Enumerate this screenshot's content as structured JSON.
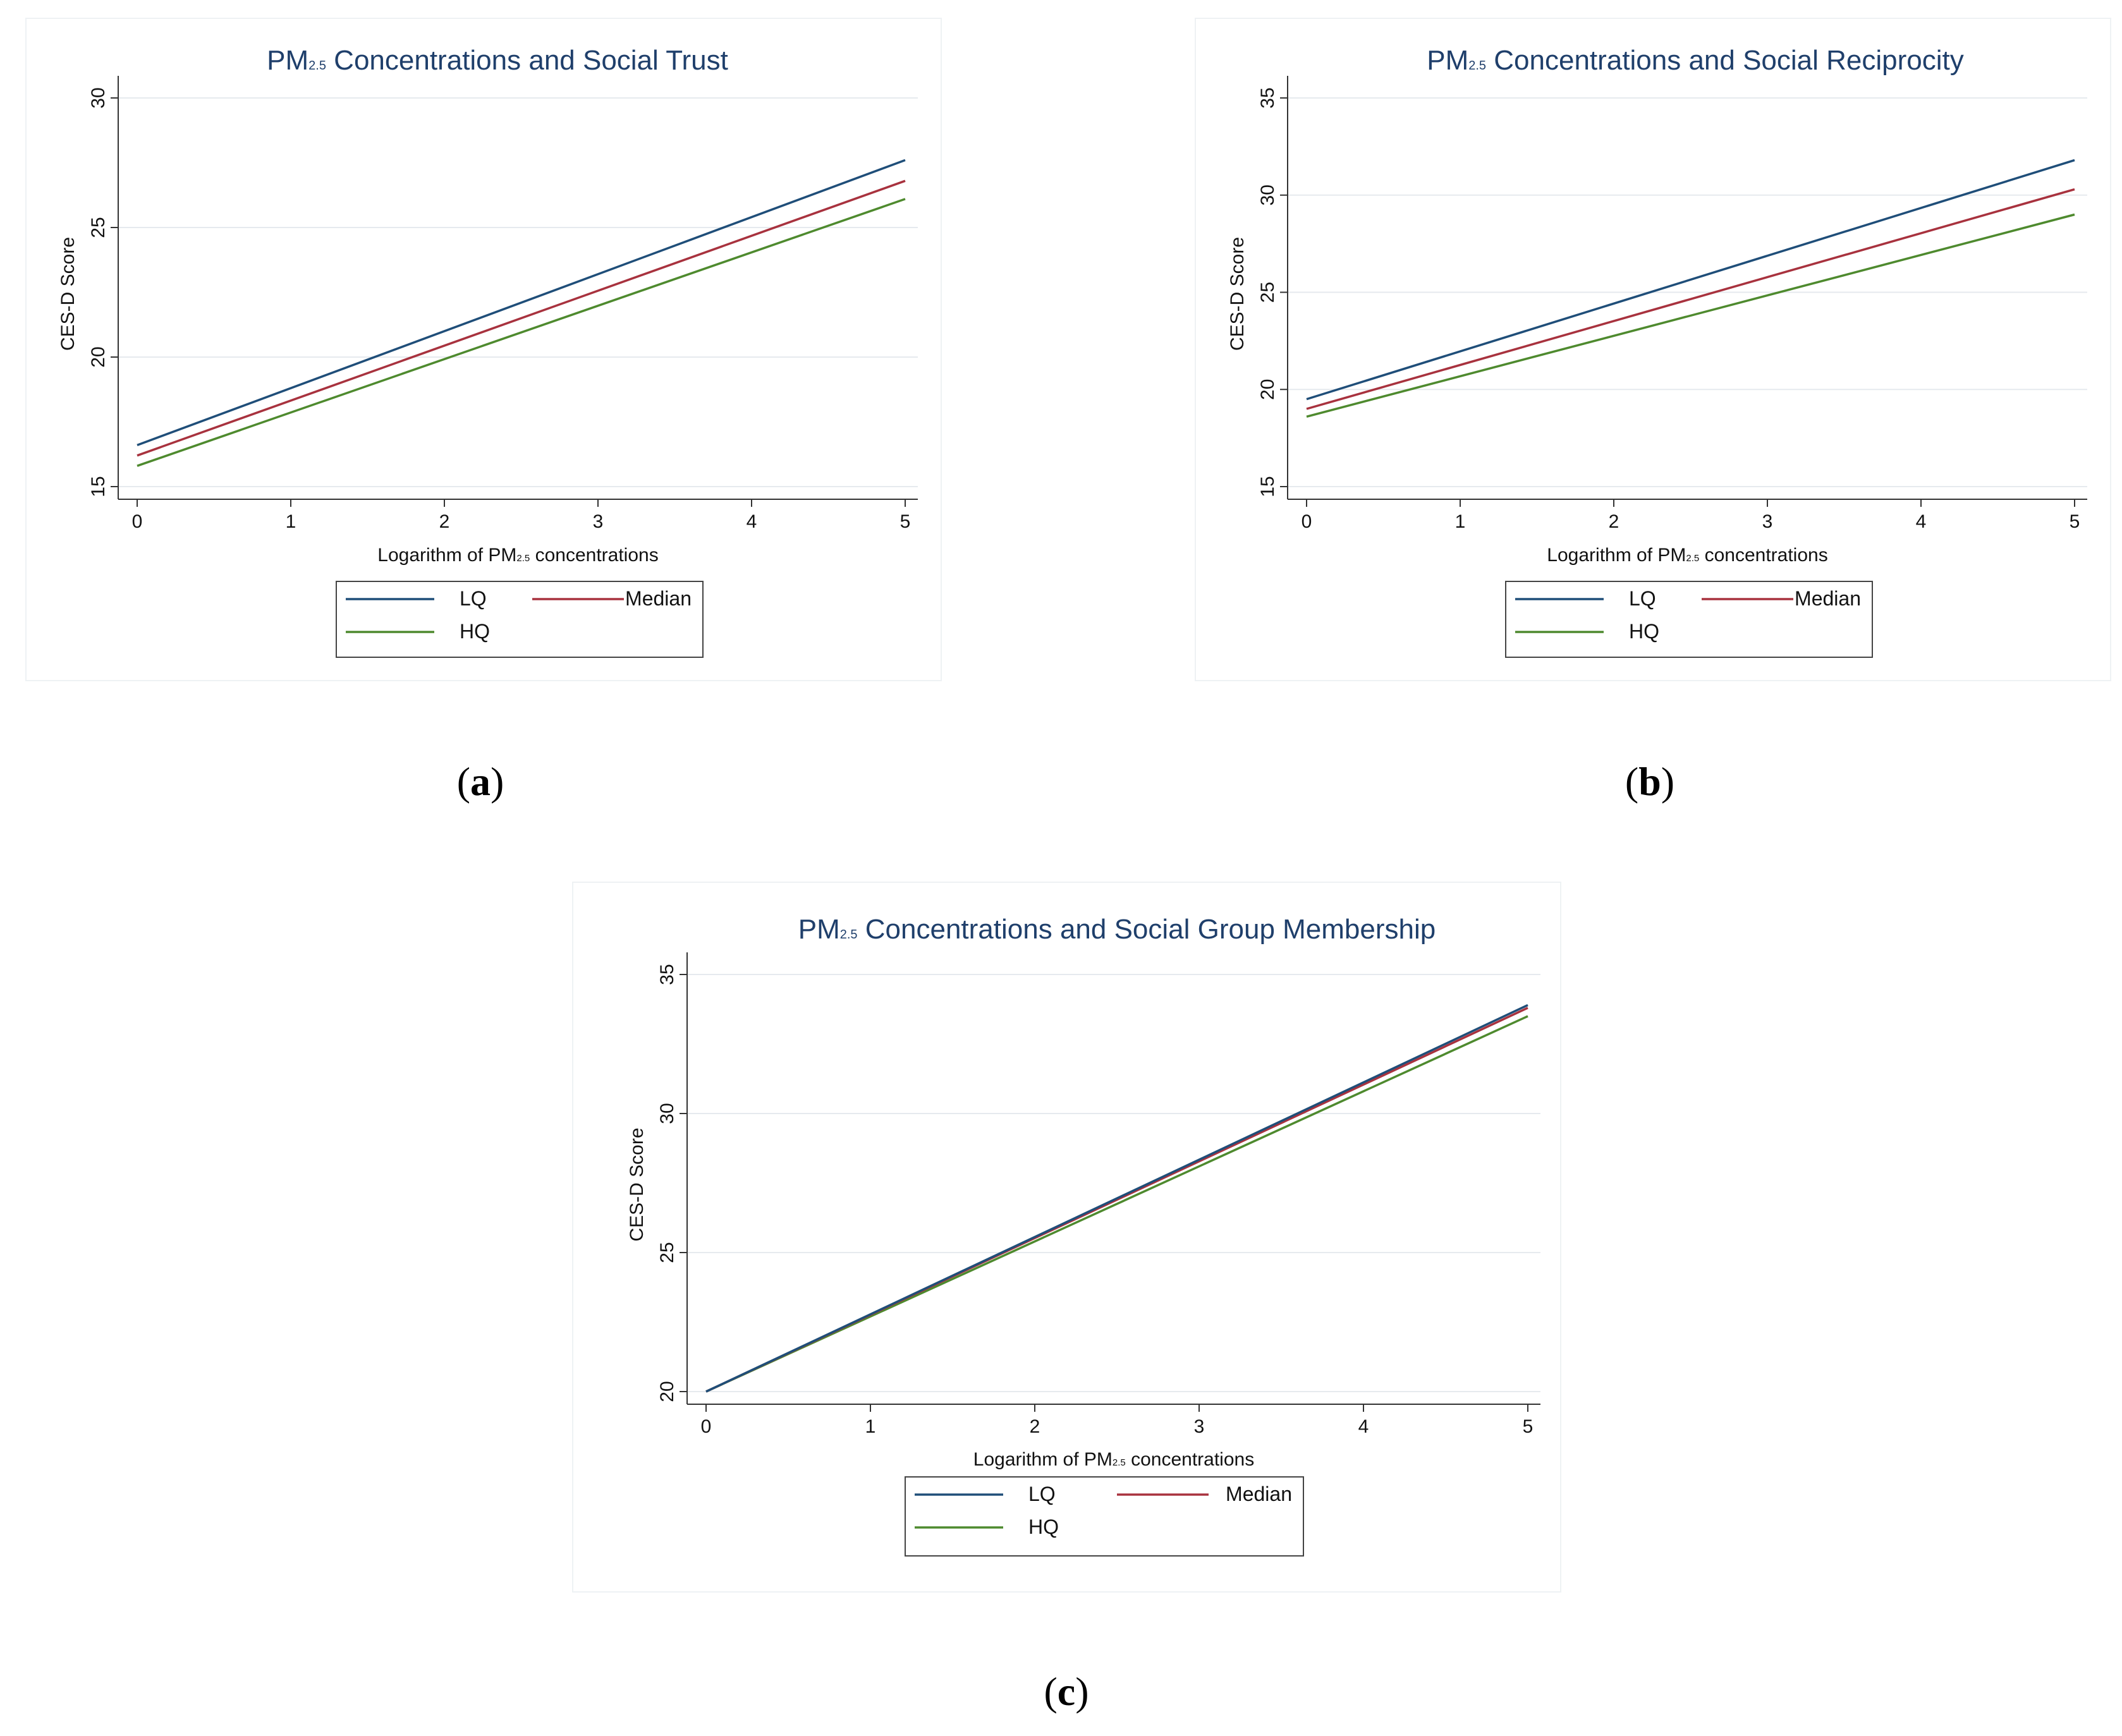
{
  "captions": [
    "a",
    "b",
    "c"
  ],
  "legend_labels": [
    "LQ",
    "Median",
    "HQ"
  ],
  "colors": {
    "LQ": "#1f4e79",
    "Median": "#a8323e",
    "HQ": "#4e8a2e",
    "grid": "#e6eaee",
    "title": "#1f3f6b"
  },
  "chart_data": [
    {
      "type": "line",
      "title_main": "PM",
      "title_sub": "2.5",
      "title_rest": " Concentrations and Social Trust",
      "xlabel_main": "Logarithm of PM",
      "xlabel_sub": "2.5",
      "xlabel_rest": " concentrations",
      "ylabel": "CES-D Score",
      "xlim": [
        0,
        5
      ],
      "ylim": [
        15,
        30
      ],
      "xticks": [
        "0",
        "1",
        "2",
        "3",
        "4",
        "5"
      ],
      "yticks": [
        "15",
        "20",
        "25",
        "30"
      ],
      "grid": true,
      "legend_position": "bottom",
      "series": [
        {
          "name": "LQ",
          "x": [
            0,
            5
          ],
          "y": [
            16.6,
            27.6
          ]
        },
        {
          "name": "Median",
          "x": [
            0,
            5
          ],
          "y": [
            16.2,
            26.8
          ]
        },
        {
          "name": "HQ",
          "x": [
            0,
            5
          ],
          "y": [
            15.8,
            26.1
          ]
        }
      ]
    },
    {
      "type": "line",
      "title_main": "PM",
      "title_sub": "2.5",
      "title_rest": " Concentrations and Social Reciprocity",
      "xlabel_main": "Logarithm of PM",
      "xlabel_sub": "2.5",
      "xlabel_rest": " concentrations",
      "ylabel": "CES-D Score",
      "xlim": [
        0,
        5
      ],
      "ylim": [
        15,
        35
      ],
      "xticks": [
        "0",
        "1",
        "2",
        "3",
        "4",
        "5"
      ],
      "yticks": [
        "15",
        "20",
        "25",
        "30",
        "35"
      ],
      "grid": true,
      "legend_position": "bottom",
      "series": [
        {
          "name": "LQ",
          "x": [
            0,
            5
          ],
          "y": [
            19.5,
            31.8
          ]
        },
        {
          "name": "Median",
          "x": [
            0,
            5
          ],
          "y": [
            19.0,
            30.3
          ]
        },
        {
          "name": "HQ",
          "x": [
            0,
            5
          ],
          "y": [
            18.6,
            29.0
          ]
        }
      ]
    },
    {
      "type": "line",
      "title_main": "PM",
      "title_sub": "2.5",
      "title_rest": " Concentrations and Social Group Membership",
      "xlabel_main": "Logarithm of PM",
      "xlabel_sub": "2.5",
      "xlabel_rest": " concentrations",
      "ylabel": "CES-D Score",
      "xlim": [
        0,
        5
      ],
      "ylim": [
        20,
        35
      ],
      "xticks": [
        "0",
        "1",
        "2",
        "3",
        "4",
        "5"
      ],
      "yticks": [
        "20",
        "25",
        "30",
        "35"
      ],
      "grid": true,
      "legend_position": "bottom",
      "series": [
        {
          "name": "LQ",
          "x": [
            0,
            5
          ],
          "y": [
            20.0,
            33.9
          ]
        },
        {
          "name": "Median",
          "x": [
            0,
            5
          ],
          "y": [
            20.0,
            33.8
          ]
        },
        {
          "name": "HQ",
          "x": [
            0,
            5
          ],
          "y": [
            20.0,
            33.5
          ]
        }
      ]
    }
  ]
}
